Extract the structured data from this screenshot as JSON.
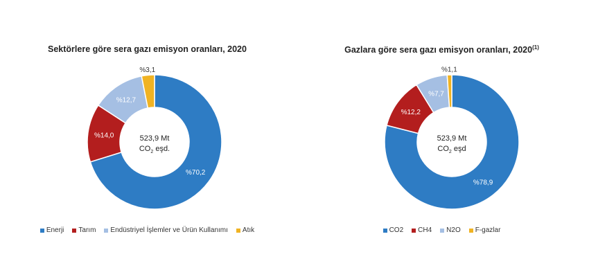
{
  "chart_data": [
    {
      "type": "pie",
      "title": "Sektörlere göre sera gazı emisyon oranları, 2020",
      "center_line1": "523,9 Mt",
      "center_line2": "CO",
      "center_sub": "2",
      "center_suffix": " eşd.",
      "categories": [
        "Enerji",
        "Tarım",
        "Endüstriyel İşlemler ve Ürün Kullanımı",
        "Atık"
      ],
      "values": [
        70.2,
        14.0,
        12.7,
        3.1
      ],
      "labels": [
        "%70,2",
        "%14,0",
        "%12,7",
        "%3,1"
      ],
      "colors": [
        "#2e7cc4",
        "#b31e1e",
        "#a5bfe3",
        "#f0b323"
      ],
      "label_colors": [
        "#ffffff",
        "#ffffff",
        "#ffffff",
        "#333333"
      ],
      "legend": "bottom"
    },
    {
      "type": "pie",
      "title": "Gazlara göre sera gazı emisyon oranları, 2020",
      "title_sup": "(1)",
      "center_line1": "523,9 Mt",
      "center_line2": "CO",
      "center_sub": "2",
      "center_suffix": " eşd",
      "categories": [
        "CO2",
        "CH4",
        "N2O",
        "F-gazlar"
      ],
      "values": [
        78.9,
        12.2,
        7.7,
        1.1
      ],
      "labels": [
        "%78,9",
        "%12,2",
        "%7,7",
        "%1,1"
      ],
      "colors": [
        "#2e7cc4",
        "#b31e1e",
        "#a5bfe3",
        "#f0b323"
      ],
      "label_colors": [
        "#ffffff",
        "#ffffff",
        "#ffffff",
        "#333333"
      ],
      "legend": "bottom"
    }
  ]
}
